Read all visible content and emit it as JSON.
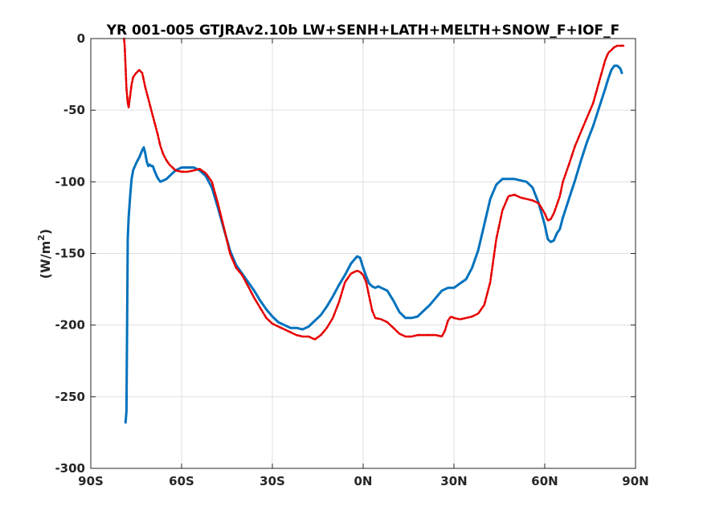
{
  "chart_data": {
    "type": "line",
    "title": "YR 001-005 GTJRAv2.10b LW+SENH+LATH+MELTH+SNOW_F+IOF_F",
    "ylabel": "(W/m^2)",
    "xlim": [
      -90,
      90
    ],
    "ylim": [
      -300,
      0
    ],
    "xticks": [
      -90,
      -60,
      -30,
      0,
      30,
      60,
      90
    ],
    "xtick_labels": [
      "90S",
      "60S",
      "30S",
      "0N",
      "30N",
      "60N",
      "90N"
    ],
    "yticks": [
      0,
      -50,
      -100,
      -150,
      -200,
      -250,
      -300
    ],
    "ytick_labels": [
      "0",
      "-50",
      "-100",
      "-150",
      "-200",
      "-250",
      "-300"
    ],
    "grid": true,
    "series": [
      {
        "color": "#0072bd",
        "style": "solid",
        "x": [
          -78.5,
          -78.2,
          -78.0,
          -77.8,
          -77.5,
          -77.0,
          -76.5,
          -76.0,
          -75.0,
          -74.0,
          -73.0,
          -72.5,
          -72.0,
          -71.5,
          -71.0,
          -70.5,
          -70.0,
          -69.5,
          -69.0,
          -68.0,
          -67.0,
          -66.0,
          -65.0,
          -64.0,
          -63.0,
          -62.0,
          -60.0,
          -58.0,
          -56.0,
          -54.0,
          -52.0,
          -50.0,
          -48.0,
          -46.0,
          -44.0,
          -42.0,
          -40.0,
          -38.0,
          -36.0,
          -34.0,
          -32.0,
          -30.0,
          -28.0,
          -26.0,
          -24.0,
          -22.0,
          -20.0,
          -18.0,
          -16.0,
          -14.0,
          -12.0,
          -10.0,
          -8.0,
          -6.0,
          -4.0,
          -2.0,
          -1.0,
          0.0,
          1.0,
          2.0,
          3.0,
          4.0,
          5.0,
          6.0,
          8.0,
          10.0,
          12.0,
          14.0,
          16.0,
          18.0,
          20.0,
          22.0,
          24.0,
          26.0,
          28.0,
          30.0,
          32.0,
          34.0,
          36.0,
          38.0,
          40.0,
          42.0,
          44.0,
          46.0,
          48.0,
          50.0,
          52.0,
          54.0,
          56.0,
          58.0,
          60.0,
          61.0,
          62.0,
          63.0,
          64.0,
          65.0,
          66.0,
          68.0,
          70.0,
          72.0,
          74.0,
          76.0,
          78.0,
          80.0,
          81.0,
          82.0,
          83.0,
          84.0,
          85.0,
          85.5
        ],
        "y": [
          -268,
          -260,
          -200,
          -140,
          -125,
          -110,
          -98,
          -92,
          -87,
          -83,
          -78,
          -76,
          -80,
          -86,
          -89,
          -88,
          -89,
          -89,
          -92,
          -97,
          -100,
          -99,
          -98,
          -96,
          -94,
          -92,
          -90,
          -90,
          -90,
          -92,
          -96,
          -104,
          -118,
          -133,
          -148,
          -158,
          -164,
          -170,
          -176,
          -183,
          -189,
          -194,
          -198,
          -200,
          -202,
          -202,
          -203,
          -201,
          -197,
          -193,
          -187,
          -180,
          -172,
          -165,
          -157,
          -152,
          -153,
          -160,
          -166,
          -171,
          -173,
          -174,
          -173,
          -174,
          -176,
          -183,
          -191,
          -195,
          -195,
          -194,
          -190,
          -186,
          -181,
          -176,
          -174,
          -174,
          -171,
          -168,
          -160,
          -148,
          -130,
          -112,
          -102,
          -98,
          -98,
          -98,
          -99,
          -100,
          -104,
          -115,
          -130,
          -140,
          -142,
          -141,
          -136,
          -133,
          -125,
          -112,
          -99,
          -85,
          -72,
          -61,
          -48,
          -35,
          -28,
          -22,
          -19,
          -19,
          -21,
          -24
        ]
      },
      {
        "color": "#e60000",
        "style": "dashdot",
        "x": [
          -79.0,
          -78.8,
          -78.5,
          -78.2,
          -77.8,
          -77.5,
          -77.0,
          -76.5,
          -76.0,
          -75.0,
          -74.0,
          -73.0,
          -72.0,
          -71.0,
          -70.0,
          -69.0,
          -68.0,
          -67.0,
          -66.0,
          -65.0,
          -64.0,
          -63.0,
          -62.0,
          -60.0,
          -58.0,
          -56.0,
          -54.0,
          -52.0,
          -50.0,
          -48.0,
          -46.0,
          -44.0,
          -42.0,
          -40.0,
          -38.0,
          -36.0,
          -34.0,
          -32.0,
          -30.0,
          -28.0,
          -26.0,
          -24.0,
          -22.0,
          -20.0,
          -18.0,
          -16.0,
          -14.0,
          -12.0,
          -10.0,
          -8.0,
          -6.0,
          -4.0,
          -2.0,
          -1.0,
          0.0,
          1.0,
          2.0,
          3.0,
          4.0,
          6.0,
          8.0,
          10.0,
          12.0,
          14.0,
          16.0,
          18.0,
          20.0,
          22.0,
          24.0,
          26.0,
          27.0,
          28.0,
          29.0,
          30.0,
          32.0,
          34.0,
          36.0,
          38.0,
          40.0,
          42.0,
          44.0,
          46.0,
          48.0,
          50.0,
          52.0,
          54.0,
          56.0,
          58.0,
          60.0,
          61.0,
          62.0,
          63.0,
          64.0,
          65.0,
          66.0,
          68.0,
          70.0,
          72.0,
          74.0,
          76.0,
          78.0,
          80.0,
          81.0,
          82.0,
          83.0,
          84.0,
          85.0,
          86.0
        ],
        "y": [
          0,
          -5,
          -20,
          -35,
          -45,
          -48,
          -40,
          -32,
          -27,
          -24,
          -22,
          -24,
          -34,
          -42,
          -50,
          -58,
          -66,
          -75,
          -81,
          -85,
          -88,
          -90,
          -92,
          -93,
          -93,
          -92,
          -91,
          -94,
          -100,
          -115,
          -132,
          -150,
          -160,
          -165,
          -173,
          -181,
          -188,
          -195,
          -199,
          -201,
          -203,
          -205,
          -207,
          -208,
          -208,
          -210,
          -207,
          -202,
          -195,
          -184,
          -170,
          -164,
          -162,
          -163,
          -165,
          -170,
          -180,
          -190,
          -195,
          -196,
          -198,
          -202,
          -206,
          -208,
          -208,
          -207,
          -207,
          -207,
          -207,
          -208,
          -204,
          -197,
          -194,
          -195,
          -196,
          -195,
          -194,
          -192,
          -186,
          -170,
          -140,
          -120,
          -110,
          -109,
          -111,
          -112,
          -113,
          -115,
          -122,
          -127,
          -126,
          -122,
          -116,
          -110,
          -100,
          -88,
          -75,
          -65,
          -55,
          -45,
          -30,
          -15,
          -10,
          -8,
          -6,
          -5,
          -5,
          -5
        ]
      }
    ]
  }
}
